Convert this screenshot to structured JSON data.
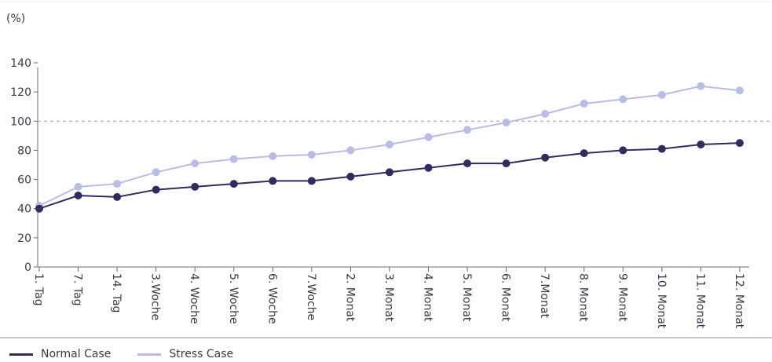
{
  "chart_data": {
    "type": "line",
    "unit_label": "(%)",
    "categories": [
      "1. Tag",
      "7. Tag",
      "14. Tag",
      "3.Woche",
      "4. Woche",
      "5. Woche",
      "6. Woche",
      "7.Woche",
      "2. Monat",
      "3. Monat",
      "4. Monat",
      "5. Monat",
      "6. Monat",
      "7.Monat",
      "8. Monat",
      "9. Monat",
      "10. Monat",
      "11. Monat",
      "12. Monat"
    ],
    "series": [
      {
        "name": "Normal Case",
        "color": "#2e2d5e",
        "values": [
          40,
          49,
          48,
          53,
          55,
          57,
          59,
          59,
          62,
          65,
          68,
          71,
          71,
          75,
          78,
          80,
          81,
          84,
          85
        ]
      },
      {
        "name": "Stress Case",
        "color": "#b9bde6",
        "values": [
          42,
          55,
          57,
          65,
          71,
          74,
          76,
          77,
          80,
          84,
          89,
          94,
          99,
          105,
          112,
          115,
          118,
          124,
          121
        ]
      }
    ],
    "ylim": [
      0,
      140
    ],
    "yticks": [
      0,
      20,
      40,
      60,
      80,
      100,
      120,
      140
    ],
    "reference_line": 100,
    "legend_position": "bottom-left"
  }
}
